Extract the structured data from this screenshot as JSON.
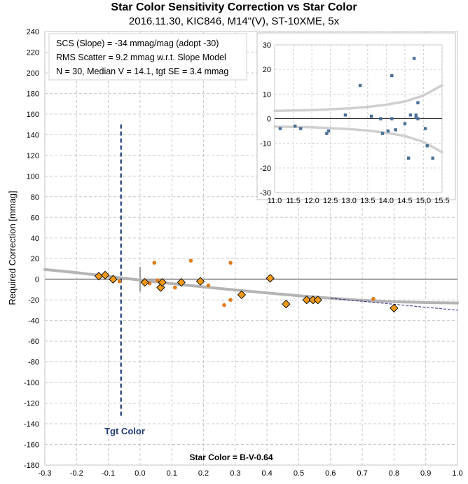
{
  "title": "Star Color Sensitivity Correction vs Star Color",
  "subtitle": "2016.11.30, KIC846, M14\"(V), ST-10XME, 5x",
  "stats": {
    "line1": "SCS (Slope)  =  -34 mmag/mag (adopt -30)",
    "line2": "RMS Scatter = 9.2 mmag w.r.t. Slope Model",
    "line3": "N = 30,  Median V = 14.1, tgt SE = 3.4 mmag"
  },
  "annotations": {
    "tgt_color": "Tgt Color",
    "star_color": "Star Color = B-V-0.64"
  },
  "colors": {
    "diamond_fill": "#f29a17",
    "dot": "#e07b1a",
    "model_curve": "#b4b4b4",
    "tgt_line": "#1f3b7a",
    "inset_points": "#4a6f9a"
  },
  "chart_data": [
    {
      "type": "scatter",
      "title": "",
      "xlabel": "",
      "ylabel": "Required Correction [mmag]",
      "xlim": [
        -0.3,
        1.0
      ],
      "ylim": [
        -180,
        240
      ],
      "grid": true,
      "x_ticks": [
        "-0.3",
        "-0.2",
        "-0.1",
        "0.0",
        "0.1",
        "0.2",
        "0.3",
        "0.4",
        "0.5",
        "0.6",
        "0.7",
        "0.8",
        "0.9",
        "1.0"
      ],
      "y_ticks": [
        "240",
        "220",
        "200",
        "180",
        "160",
        "140",
        "120",
        "100",
        "80",
        "60",
        "40",
        "20",
        "0",
        "-20",
        "-40",
        "-60",
        "-80",
        "-100",
        "-120",
        "-140",
        "-160",
        "-180"
      ],
      "target_color_x": -0.06,
      "series": [
        {
          "marker": "diamond",
          "x": [
            -0.13,
            -0.11,
            -0.085,
            0.015,
            0.065,
            0.07,
            0.13,
            0.19,
            0.32,
            0.41,
            0.46,
            0.525,
            0.545,
            0.56,
            0.8
          ],
          "y": [
            3,
            4,
            0,
            -3,
            -8,
            -3,
            -3,
            -2,
            -15,
            1,
            -24,
            -20,
            -20,
            -20,
            -28
          ]
        },
        {
          "marker": "dot",
          "x": [
            -0.065,
            0.03,
            0.045,
            0.055,
            0.11,
            0.16,
            0.215,
            0.265,
            0.285,
            0.285,
            0.735
          ],
          "y": [
            -2,
            -4,
            16,
            -1,
            -8,
            18,
            -6,
            -25,
            16,
            -20,
            -19
          ]
        }
      ],
      "model_curve": {
        "x": [
          -0.3,
          -0.2,
          -0.1,
          0.0,
          0.1,
          0.2,
          0.3,
          0.4,
          0.5,
          0.6,
          0.7,
          0.8,
          0.9,
          1.0
        ],
        "y": [
          9.5,
          6.4,
          2.8,
          -0.8,
          -4.2,
          -7.4,
          -10.4,
          -13.3,
          -16.0,
          -18.4,
          -20.4,
          -21.8,
          -22.6,
          -23.0
        ]
      },
      "slope_line": {
        "x": [
          0.6,
          1.0
        ],
        "y": [
          -18.4,
          -30
        ]
      }
    },
    {
      "type": "scatter",
      "title": "",
      "xlim": [
        11.0,
        15.5
      ],
      "ylim": [
        -30,
        30
      ],
      "grid": true,
      "x_ticks": [
        "11.0",
        "11.5",
        "12.0",
        "12.5",
        "13.0",
        "13.5",
        "14.0",
        "14.5",
        "15.0",
        "15.5"
      ],
      "y_ticks": [
        "30",
        "20",
        "10",
        "0",
        "-10",
        "-20",
        "-30"
      ],
      "points": {
        "x": [
          11.15,
          11.55,
          11.7,
          12.4,
          12.45,
          12.9,
          13.3,
          13.6,
          13.85,
          13.9,
          14.05,
          14.15,
          14.15,
          14.25,
          14.5,
          14.6,
          14.65,
          14.75,
          14.8,
          14.8,
          14.85,
          14.85,
          15.05,
          15.1,
          15.25
        ],
        "y": [
          -4,
          -3,
          -4,
          -6,
          -5,
          1.5,
          13.5,
          1,
          0,
          -6,
          -5,
          17.5,
          0,
          -4.5,
          -2,
          -16,
          1.5,
          24.5,
          0.5,
          1.5,
          6.5,
          0,
          -4,
          -11,
          -16
        ]
      },
      "upper_band": {
        "x": [
          11.0,
          12.0,
          13.0,
          13.5,
          14.0,
          14.5,
          15.0,
          15.5
        ],
        "y": [
          3.2,
          3.5,
          4.2,
          4.8,
          5.7,
          7.0,
          9.4,
          13.6
        ]
      },
      "lower_band": {
        "x": [
          11.0,
          12.0,
          13.0,
          13.5,
          14.0,
          14.5,
          15.0,
          15.5
        ],
        "y": [
          -3.2,
          -3.5,
          -4.2,
          -4.8,
          -5.7,
          -7.0,
          -9.4,
          -13.6
        ]
      }
    }
  ]
}
